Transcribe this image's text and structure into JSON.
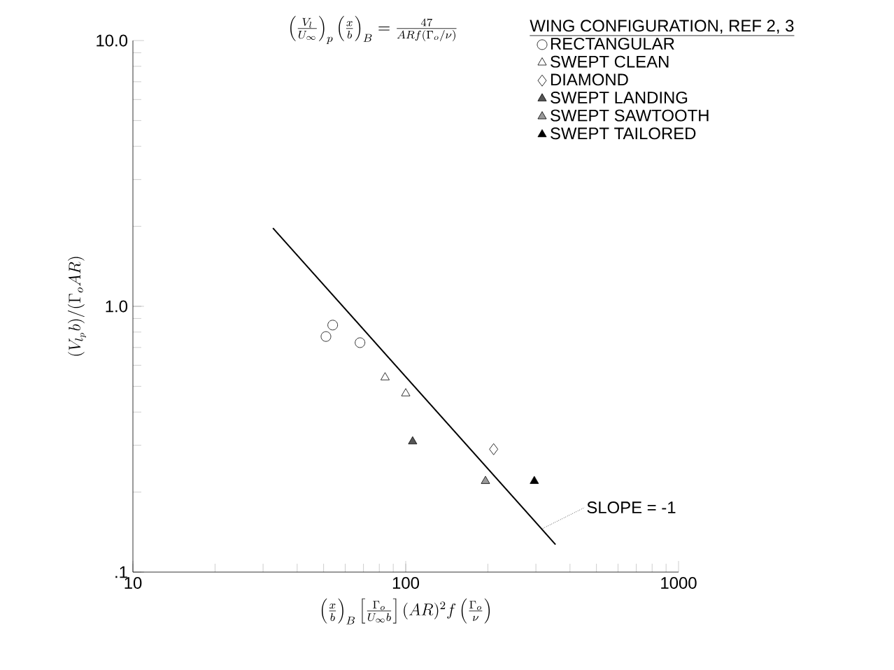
{
  "chart_data": {
    "type": "scatter",
    "log": "xy",
    "xlim": [
      10,
      1000
    ],
    "ylim": [
      0.1,
      10
    ],
    "xticks": [
      10,
      100,
      1000
    ],
    "yticks": [
      {
        "value": 0.1,
        "label": ".1"
      },
      {
        "value": 1,
        "label": "1.0"
      },
      {
        "value": 10,
        "label": "10.0"
      }
    ],
    "xlabel": "\\left(\\frac{x}{b}\\right)_{B}\\left[\\frac{\\Gamma_{o}}{U_{\\infty} b}\\right](AR)^{2} f\\left(\\frac{\\Gamma_{o}}{\\nu}\\right)",
    "ylabel": "(V_{l_{p}} b)/(\\Gamma_{o} AR)",
    "legend": "top right",
    "legend_title": "WING CONFIGURATION, REF 2, 3",
    "annotations": [
      "\\left(\\frac{V_{l}}{U_{\\infty}}\\right)_{p}\\left(\\frac{x}{b}\\right)_{B} = \\frac{47}{AR f(\\Gamma_{o}/\\nu)}",
      {
        "text": "SLOPE = -1",
        "x": 318,
        "y": 0.146
      }
    ],
    "series": [
      {
        "name": "RECTANGULAR",
        "color": "#ffffff",
        "marker": "circle",
        "x": [
          51,
          54,
          68
        ],
        "values": [
          0.77,
          0.85,
          0.73
        ]
      },
      {
        "name": "SWEPT CLEAN",
        "color": "#ffffff",
        "marker": "triangle",
        "x": [
          84,
          100
        ],
        "values": [
          0.54,
          0.47
        ]
      },
      {
        "name": "DIAMOND",
        "color": "#ffffff",
        "marker": "diamond",
        "x": [
          210
        ],
        "values": [
          0.29
        ]
      },
      {
        "name": "SWEPT LANDING",
        "color": "#555555",
        "marker": "triangle",
        "x": [
          106
        ],
        "values": [
          0.31
        ]
      },
      {
        "name": "SWEPT SAWTOOTH",
        "color": "#999999",
        "marker": "triangle",
        "x": [
          196
        ],
        "values": [
          0.22
        ]
      },
      {
        "name": "SWEPT TAILORED",
        "color": "#000000",
        "marker": "triangle",
        "x": [
          296
        ],
        "values": [
          0.22
        ]
      },
      {
        "type": "line",
        "color": "#000000",
        "marker": "none",
        "x": [
          32.6,
          354
        ],
        "values": [
          1.97,
          0.127
        ]
      }
    ]
  }
}
